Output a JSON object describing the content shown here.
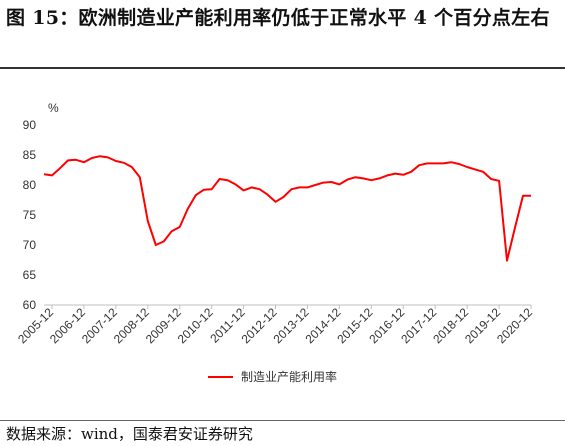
{
  "title": "图 15：欧洲制造业产能利用率仍低于正常水平 4 个百分点左右",
  "source": "数据来源：wind，国泰君安证券研究",
  "chart_data": {
    "type": "line",
    "ylabel": "%",
    "ylim": [
      60,
      90
    ],
    "yticks": [
      60,
      65,
      70,
      75,
      80,
      85,
      90
    ],
    "xlim": [
      2005.75,
      2021.0
    ],
    "xticks": [
      "2005-12",
      "2006-12",
      "2007-12",
      "2008-12",
      "2009-12",
      "2010-12",
      "2011-12",
      "2012-12",
      "2013-12",
      "2014-12",
      "2015-12",
      "2016-12",
      "2017-12",
      "2018-12",
      "2019-12",
      "2020-12"
    ],
    "legend_position": "bottom",
    "series": [
      {
        "name": "制造业产能利用率",
        "color": "#ff0000",
        "x": [
          "2005-09",
          "2005-12",
          "2006-03",
          "2006-06",
          "2006-09",
          "2006-12",
          "2007-03",
          "2007-06",
          "2007-09",
          "2007-12",
          "2008-03",
          "2008-06",
          "2008-09",
          "2008-12",
          "2009-03",
          "2009-06",
          "2009-09",
          "2009-12",
          "2010-03",
          "2010-06",
          "2010-09",
          "2010-12",
          "2011-03",
          "2011-06",
          "2011-09",
          "2011-12",
          "2012-03",
          "2012-06",
          "2012-09",
          "2012-12",
          "2013-03",
          "2013-06",
          "2013-09",
          "2013-12",
          "2014-03",
          "2014-06",
          "2014-09",
          "2014-12",
          "2015-03",
          "2015-06",
          "2015-09",
          "2015-12",
          "2016-03",
          "2016-06",
          "2016-09",
          "2016-12",
          "2017-03",
          "2017-06",
          "2017-09",
          "2017-12",
          "2018-03",
          "2018-06",
          "2018-09",
          "2018-12",
          "2019-03",
          "2019-06",
          "2019-09",
          "2019-12",
          "2020-03",
          "2020-06",
          "2020-09",
          "2020-12"
        ],
        "values": [
          81.8,
          81.6,
          82.8,
          84.1,
          84.2,
          83.8,
          84.5,
          84.8,
          84.6,
          84.0,
          83.7,
          83.0,
          81.3,
          74.0,
          70.0,
          70.6,
          72.3,
          73.0,
          76.0,
          78.3,
          79.2,
          79.3,
          81.0,
          80.8,
          80.1,
          79.1,
          79.6,
          79.3,
          78.4,
          77.2,
          78.0,
          79.3,
          79.6,
          79.6,
          80.0,
          80.4,
          80.5,
          80.1,
          80.9,
          81.3,
          81.1,
          80.8,
          81.1,
          81.6,
          81.9,
          81.7,
          82.2,
          83.3,
          83.6,
          83.6,
          83.6,
          83.8,
          83.5,
          83.0,
          82.6,
          82.2,
          81.0,
          80.7,
          67.4,
          72.9,
          78.2,
          78.2
        ]
      }
    ]
  }
}
